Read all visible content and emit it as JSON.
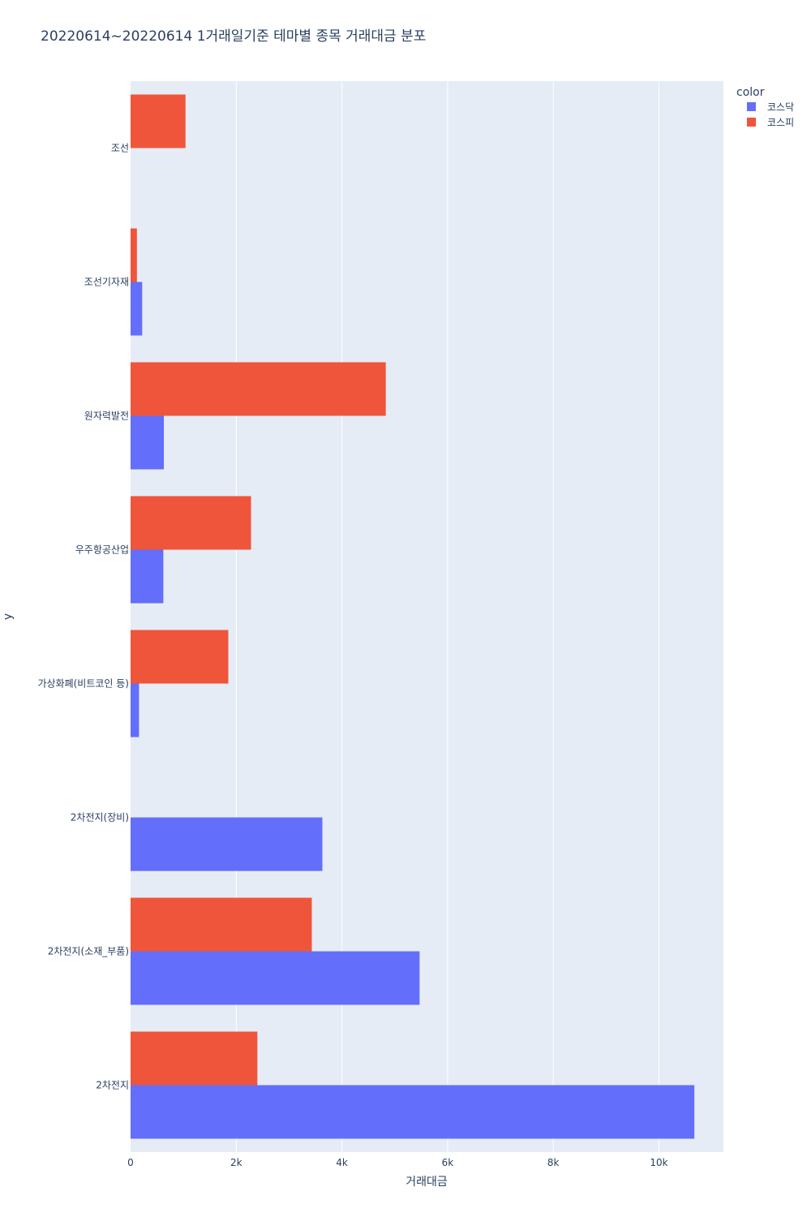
{
  "chart_data": {
    "type": "bar",
    "orientation": "horizontal",
    "barmode": "group",
    "title": "20220614~20220614 1거래일기준 테마별 종목 거래대금 분포",
    "xlabel": "거래대금",
    "ylabel": "y",
    "xlim": [
      0,
      11220
    ],
    "x_ticks": [
      0,
      2000,
      4000,
      6000,
      8000,
      10000
    ],
    "x_tick_labels": [
      "0",
      "2k",
      "4k",
      "6k",
      "8k",
      "10k"
    ],
    "categories": [
      "2차전지",
      "2차전지(소재_부품)",
      "2차전지(장비)",
      "가상화폐(비트코인 등)",
      "우주항공산업",
      "원자력발전",
      "조선기자재",
      "조선"
    ],
    "grid": true,
    "legend_title": "color",
    "legend_position": "top-right",
    "series": [
      {
        "name": "코스닥",
        "color": "#636efa",
        "values": [
          10670,
          5470,
          3630,
          160,
          620,
          630,
          220,
          null
        ]
      },
      {
        "name": "코스피",
        "color": "#ef553b",
        "values": [
          2400,
          3430,
          null,
          1850,
          2280,
          4830,
          120,
          1040
        ]
      }
    ]
  }
}
